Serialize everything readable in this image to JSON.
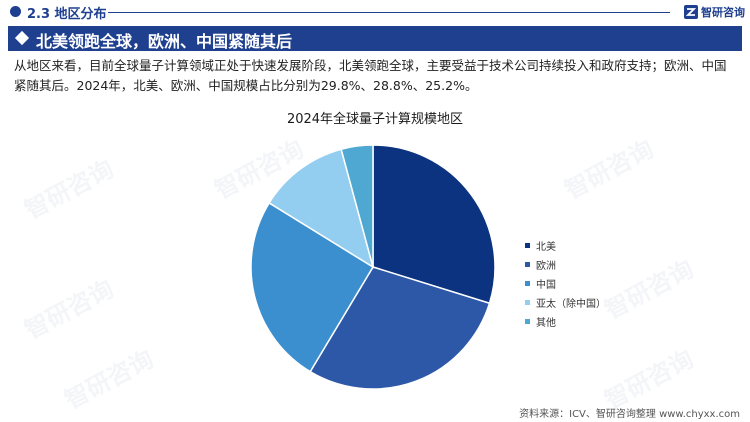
{
  "header": {
    "section": "2.3 地区分布",
    "brand": "智研咨询"
  },
  "banner": {
    "title": "北美领跑全球，欧洲、中国紧随其后"
  },
  "paragraph": "从地区来看，目前全球量子计算领域正处于快速发展阶段，北美领跑全球，主要受益于技术公司持续投入和政府支持；欧洲、中国紧随其后。2024年，北美、欧洲、中国规模占比分别为29.8%、28.8%、25.2%。",
  "watermark": "智研咨询",
  "source": "资料来源：ICV、智研咨询整理   www.chyxx.com",
  "chart_data": {
    "type": "pie",
    "title": "2024年全球量子计算规模地区",
    "categories": [
      "北美",
      "欧洲",
      "中国",
      "亚太（除中国）",
      "其他"
    ],
    "values": [
      29.8,
      28.8,
      25.2,
      12.0,
      4.2
    ],
    "colors": [
      "#0b3380",
      "#2d58a8",
      "#3b8fcf",
      "#93cdf0",
      "#4ea8d2"
    ],
    "legend_position": "right",
    "start_angle_deg": 0,
    "direction": "clockwise"
  }
}
